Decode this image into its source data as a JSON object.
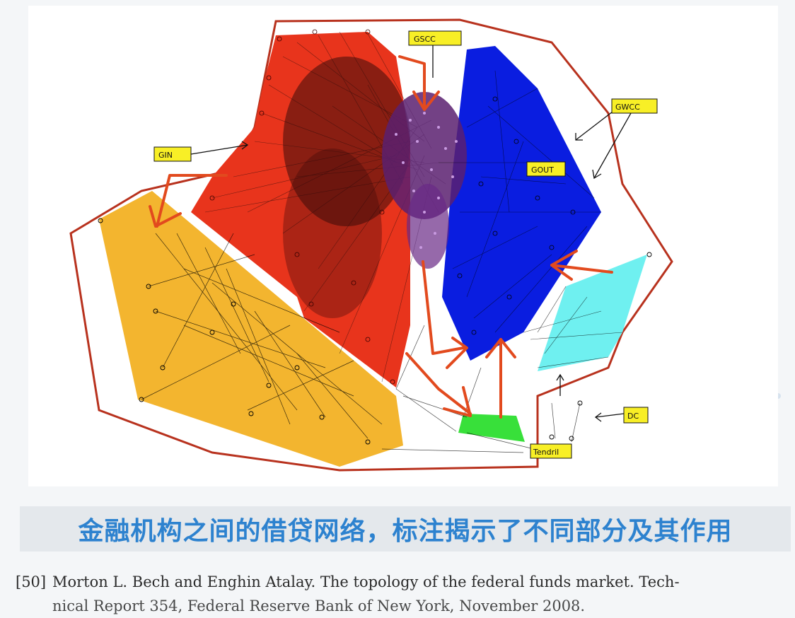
{
  "diagram": {
    "labels": {
      "gscc": "GSCC",
      "gwcc": "GWCC",
      "gin": "GIN",
      "gout": "GOUT",
      "dc": "DC",
      "tendril": "Tendril"
    },
    "colors": {
      "gin_region": "#e8341c",
      "gscc_core": "#5a2070",
      "gout_region": "#0a1de0",
      "tendril_region": "#38e03a",
      "cyan_region": "#6ff0f0",
      "yellow_region": "#f3b52f",
      "gwcc_boundary": "#b8321e",
      "arrow": "#e24a1e",
      "label_box": "#f8ef26"
    }
  },
  "caption": "金融机构之间的借贷网络，标注揭示了不同部分及其作用",
  "reference": {
    "number": "[50]",
    "line1": "Morton L. Bech and Enghin Atalay. The topology of the federal funds market. Tech-",
    "line2": "nical Report 354, Federal Reserve Bank of New York, November 2008."
  }
}
